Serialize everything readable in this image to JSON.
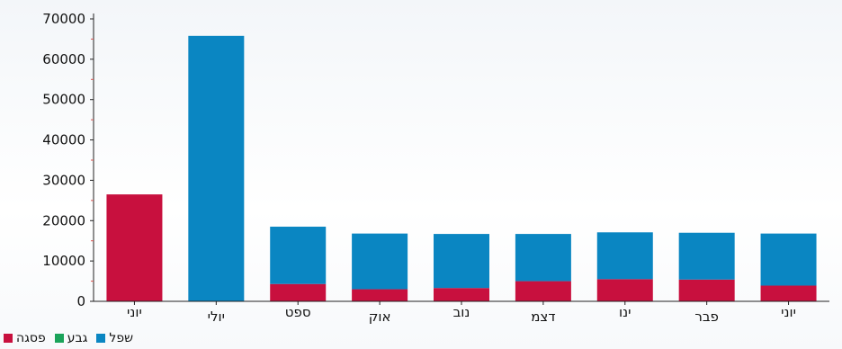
{
  "chart_data": {
    "type": "bar",
    "stacked": true,
    "title": "",
    "xlabel": "",
    "ylabel": "",
    "ylim": [
      0,
      70000
    ],
    "yticks": [
      0,
      10000,
      20000,
      30000,
      40000,
      50000,
      60000,
      70000
    ],
    "grid": false,
    "legend_position": "bottom-left",
    "categories": [
      "יוני",
      "יולי",
      "ספט",
      "אוק",
      "נוב",
      "דצמ",
      "ינו",
      "פבר",
      "יוני"
    ],
    "series": [
      {
        "name": "פסגה",
        "color": "#c8103e",
        "values": [
          26500,
          0,
          4300,
          3000,
          3300,
          5000,
          5500,
          5400,
          3900
        ]
      },
      {
        "name": "גבע",
        "color": "#1aa35a",
        "values": [
          0,
          0,
          0,
          0,
          0,
          0,
          0,
          0,
          0
        ]
      },
      {
        "name": "שפל",
        "color": "#0a86c2",
        "values": [
          0,
          65800,
          14200,
          13800,
          13400,
          11700,
          11600,
          11600,
          12900
        ]
      }
    ]
  }
}
